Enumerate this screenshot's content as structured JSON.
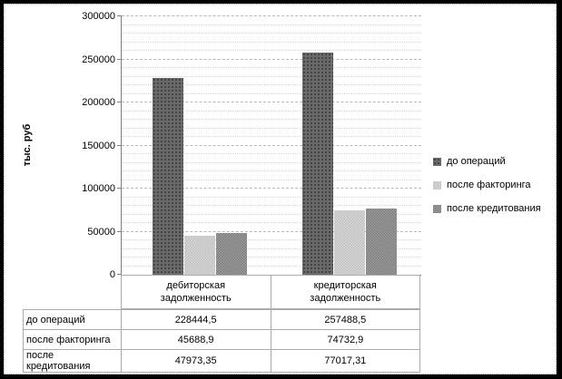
{
  "frame": {
    "border_color": "#000000",
    "background": "#ffffff",
    "inner_border_color": "#b3b3b3"
  },
  "chart_data": {
    "type": "bar",
    "title": "",
    "xlabel": "",
    "ylabel": "тыс. руб",
    "categories": [
      "дебиторская задолженность",
      "кредиторская задолженность"
    ],
    "series": [
      {
        "name": "до операций",
        "values": [
          228444.5,
          257488.5
        ]
      },
      {
        "name": "после факторинга",
        "values": [
          45688.9,
          74732.9
        ]
      },
      {
        "name": "после кредитования",
        "values": [
          47973.35,
          77017.31
        ]
      }
    ],
    "ylim": [
      0,
      300000
    ],
    "ytick_step": 50000,
    "minor_gridline_step": 10000,
    "y_tick_labels": [
      "0",
      "50000",
      "100000",
      "150000",
      "200000",
      "250000",
      "300000"
    ],
    "grid": true,
    "legend_position": "right",
    "series_base_colors": [
      "#6a6a6a",
      "#d8d8d8",
      "#9b9b9b"
    ],
    "series_dot_colors": [
      "#3d3d3d",
      "#bfbfbf",
      "#7f7f7f"
    ],
    "gridline_minor_color": "#d6d6d6",
    "gridline_major_color": "#b8b8b8",
    "axis_color": "#808080"
  },
  "data_table": {
    "rows": [
      {
        "label": "до операций",
        "values": [
          "228444,5",
          "257488,5"
        ]
      },
      {
        "label": "после факторинга",
        "values": [
          "45688,9",
          "74732,9"
        ]
      },
      {
        "label": "после кредитования",
        "values": [
          "47973,35",
          "77017,31"
        ]
      }
    ]
  }
}
